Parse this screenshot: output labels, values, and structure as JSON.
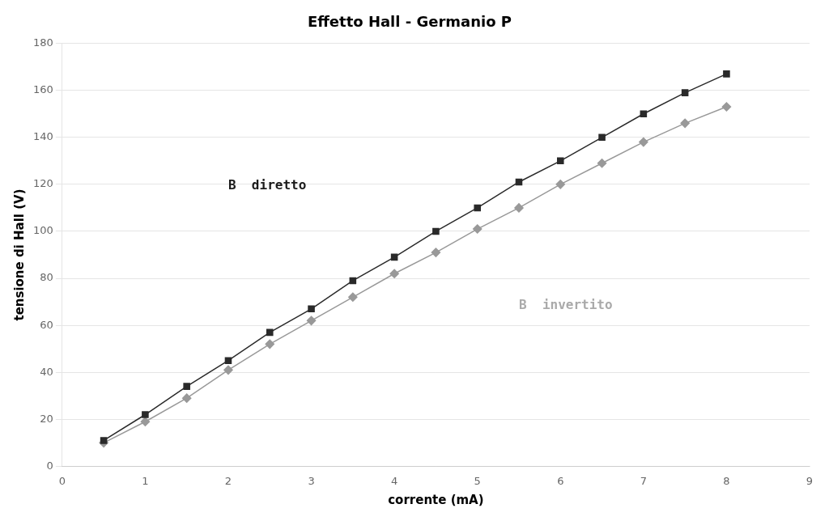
{
  "chart_data": {
    "type": "line",
    "title": "Effetto Hall - Germanio P",
    "x_label": "corrente (mA)",
    "y_label": "tensione di Hall (V)",
    "x": [
      0.5,
      1.0,
      1.5,
      2.0,
      2.5,
      3.0,
      3.5,
      4.0,
      4.5,
      5.0,
      5.5,
      6.0,
      6.5,
      7.0,
      7.5,
      8.0
    ],
    "series": [
      {
        "color": "#2a2a2a",
        "marker": "square",
        "values": [
          11,
          22,
          34,
          45,
          57,
          67,
          79,
          89,
          100,
          110,
          121,
          130,
          140,
          150,
          159,
          167
        ]
      },
      {
        "color": "#999999",
        "marker": "diamond",
        "values": [
          10,
          19,
          29,
          41,
          52,
          62,
          72,
          82,
          91,
          101,
          110,
          120,
          129,
          138,
          146,
          153
        ]
      }
    ],
    "xlim": [
      0,
      9
    ],
    "ylim": [
      0,
      180
    ],
    "xticks": [
      0,
      1,
      2,
      3,
      4,
      5,
      6,
      7,
      8,
      9
    ],
    "yticks": [
      0,
      20,
      40,
      60,
      80,
      100,
      120,
      140,
      160,
      180
    ],
    "grid": "y",
    "annotations": [
      {
        "text": "B  diretto",
        "x": 2.0,
        "y": 118,
        "color": "#1a1a1a"
      },
      {
        "text": "B  invertito",
        "x": 5.5,
        "y": 67,
        "color": "#aaaaaa"
      }
    ]
  }
}
